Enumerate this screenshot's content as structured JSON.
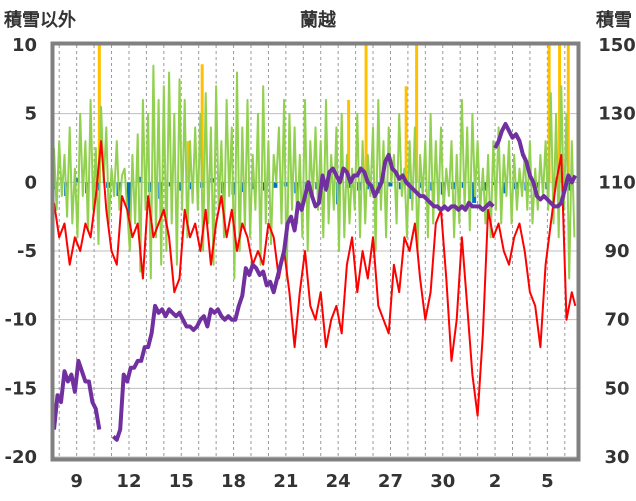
{
  "chart_data": {
    "type": "line",
    "title": "蘭越",
    "left_axis_label": "積雪以外",
    "right_axis_label": "積雪",
    "left_ylim": [
      -20,
      10
    ],
    "right_ylim": [
      30,
      150
    ],
    "left_ticks": [
      "10",
      "5",
      "0",
      "-5",
      "-10",
      "-15",
      "-20"
    ],
    "right_ticks": [
      "150",
      "130",
      "110",
      "90",
      "70",
      "50",
      "30"
    ],
    "x_ticks": [
      "9",
      "12",
      "15",
      "18",
      "21",
      "24",
      "27",
      "30",
      "2",
      "5"
    ],
    "x_tick_days": [
      2,
      5,
      8,
      11,
      14,
      17,
      20,
      23,
      26,
      29
    ],
    "x_range_days": [
      0.7,
      30.7
    ],
    "series": [
      {
        "key": "green",
        "color": "#92d050",
        "axis": "left",
        "days": [
          0.7,
          0.85,
          1.0,
          1.15,
          1.3,
          1.45,
          1.6,
          1.75,
          1.9,
          2.05,
          2.2,
          2.35,
          2.5,
          2.65,
          2.8,
          2.95,
          3.1,
          3.25,
          3.4,
          3.55,
          3.7,
          3.85,
          4.0,
          4.15,
          4.3,
          4.45,
          4.6,
          4.75,
          4.9,
          5.05,
          5.2,
          5.35,
          5.5,
          5.65,
          5.8,
          5.95,
          6.1,
          6.25,
          6.4,
          6.55,
          6.7,
          6.85,
          7.0,
          7.15,
          7.3,
          7.45,
          7.6,
          7.75,
          7.9,
          8.05,
          8.2,
          8.35,
          8.5,
          8.65,
          8.8,
          8.95,
          9.1,
          9.25,
          9.4,
          9.55,
          9.7,
          9.85,
          10.0,
          10.15,
          10.3,
          10.45,
          10.6,
          10.75,
          10.9,
          11.05,
          11.2,
          11.35,
          11.5,
          11.65,
          11.8,
          11.95,
          12.1,
          12.25,
          12.4,
          12.55,
          12.7,
          12.85,
          13.0,
          13.15,
          13.3,
          13.45,
          13.6,
          13.75,
          13.9,
          14.05,
          14.2,
          14.35,
          14.5,
          14.65,
          14.8,
          14.95,
          15.1,
          15.25,
          15.4,
          15.55,
          15.7,
          15.85,
          16.0,
          16.15,
          16.3,
          16.45,
          16.6,
          16.75,
          16.9,
          17.05,
          17.2,
          17.35,
          17.5,
          17.65,
          17.8,
          17.95,
          18.1,
          18.25,
          18.4,
          18.55,
          18.7,
          18.85,
          19.0,
          19.15,
          19.3,
          19.45,
          19.6,
          19.75,
          19.9,
          20.05,
          20.2,
          20.35,
          20.5,
          20.65,
          20.8,
          20.95,
          21.1,
          21.25,
          21.4,
          21.55,
          21.7,
          21.85,
          22.0,
          22.15,
          22.3,
          22.45,
          22.6,
          22.75,
          22.9,
          23.05,
          23.2,
          23.35,
          23.5,
          23.65,
          23.8,
          23.95,
          24.1,
          24.25,
          24.4,
          24.55,
          24.7,
          24.85,
          25.0,
          25.15,
          25.3,
          25.45,
          25.6,
          25.75,
          25.9,
          26.05,
          26.2,
          26.35,
          26.5,
          26.65,
          26.8,
          26.95,
          27.1,
          27.25,
          27.4,
          27.55,
          27.7,
          27.85,
          28.0,
          28.15,
          28.3,
          28.45,
          28.6,
          28.75,
          28.9,
          29.05,
          29.2,
          29.35,
          29.5,
          29.65,
          29.8,
          29.95,
          30.1,
          30.25,
          30.4,
          30.55
        ],
        "values": [
          2.5,
          -2,
          3,
          -1,
          2,
          -2.5,
          4,
          -3,
          1,
          -4,
          5,
          -1,
          3,
          -3.5,
          6,
          -2,
          2.5,
          -4.5,
          5.5,
          0,
          4,
          -3,
          1,
          -1,
          3,
          -2,
          0.5,
          1,
          -2,
          -5,
          2,
          -3,
          3.5,
          -6.5,
          6,
          -2,
          5,
          -7,
          8.5,
          -4,
          6,
          -6,
          7,
          -5,
          8,
          -3,
          5,
          -6,
          7.5,
          -2,
          6,
          -4,
          3,
          -1.5,
          4,
          -2,
          5,
          -5,
          6.5,
          -3,
          4,
          -6,
          7,
          -2,
          3,
          -4,
          6,
          -1,
          4,
          -7,
          8,
          -5,
          4,
          -3.5,
          6,
          -4,
          2,
          -2,
          5,
          -6,
          7,
          -3,
          3,
          -4.5,
          2,
          0,
          4,
          -3,
          6,
          -7,
          5,
          -2,
          4,
          -3,
          2,
          -4,
          6,
          -5,
          3,
          -1,
          4,
          -2,
          3,
          -4,
          6,
          -3,
          2,
          -2,
          4,
          -5,
          5,
          -4,
          2,
          -3,
          1,
          -2,
          5,
          -4,
          3,
          -3,
          2,
          -1,
          4,
          -5,
          6,
          -2,
          3,
          -4,
          4,
          0,
          2,
          -3,
          5,
          -1,
          1,
          -4,
          3,
          -2,
          4,
          -5,
          2,
          -1,
          3,
          -4,
          5,
          -3,
          3,
          -2,
          4,
          -2,
          1,
          -1,
          3,
          -4,
          2,
          -3,
          6,
          -2,
          4,
          -3.5,
          5,
          -1,
          3,
          -2,
          1,
          -3,
          2,
          -4,
          3,
          -2,
          4,
          -3,
          2,
          -1,
          3,
          -3,
          2,
          -2,
          1,
          -1,
          2,
          -2,
          3,
          -3,
          1,
          -2,
          2,
          -1,
          3,
          -2,
          6.5,
          -3,
          5,
          -4,
          7,
          -2,
          5,
          -7,
          3,
          -4
        ]
      },
      {
        "key": "red",
        "color": "#ff0000",
        "axis": "left",
        "days": [
          0.7,
          1.0,
          1.3,
          1.6,
          1.9,
          2.2,
          2.5,
          2.8,
          3.1,
          3.4,
          3.7,
          4.0,
          4.3,
          4.6,
          4.9,
          5.2,
          5.5,
          5.8,
          6.1,
          6.4,
          6.7,
          7.0,
          7.3,
          7.6,
          7.9,
          8.2,
          8.5,
          8.8,
          9.1,
          9.4,
          9.7,
          10.0,
          10.3,
          10.6,
          10.9,
          11.2,
          11.5,
          11.8,
          12.1,
          12.4,
          12.7,
          13.0,
          13.3,
          13.6,
          13.9,
          14.2,
          14.5,
          14.8,
          15.1,
          15.4,
          15.7,
          16.0,
          16.3,
          16.6,
          16.9,
          17.2,
          17.5,
          17.8,
          18.1,
          18.4,
          18.7,
          19.0,
          19.3,
          19.6,
          19.9,
          20.2,
          20.5,
          20.8,
          21.1,
          21.4,
          21.7,
          22.0,
          22.3,
          22.6,
          22.9,
          23.2,
          23.5,
          23.8,
          24.1,
          24.4,
          24.7,
          25.0,
          25.3,
          25.6,
          25.9,
          26.2,
          26.5,
          26.8,
          27.1,
          27.4,
          27.7,
          28.0,
          28.3,
          28.6,
          28.9,
          29.2,
          29.5,
          29.8,
          30.1,
          30.4,
          30.6
        ],
        "values": [
          -1.5,
          -4,
          -3,
          -6,
          -4,
          -5,
          -3,
          -4,
          -1,
          3,
          -2,
          -5,
          -6,
          -1,
          -2,
          -4,
          -3,
          -7,
          -1,
          -4,
          -3,
          -2,
          -4,
          -8,
          -7,
          -2,
          -4,
          -3,
          -5,
          -2,
          -6,
          -3,
          -1,
          -4,
          -2,
          -5,
          -3,
          -4,
          -6,
          -5,
          -6,
          -3,
          -4,
          -7,
          -5,
          -8,
          -12,
          -8,
          -5,
          -9,
          -10,
          -8,
          -12,
          -10,
          -9,
          -11,
          -6,
          -4,
          -8,
          -5,
          -7,
          -4,
          -9,
          -10,
          -11,
          -6,
          -8,
          -4,
          -5,
          -3,
          -7,
          -10,
          -8,
          -3,
          -2,
          -7,
          -13,
          -10,
          -4,
          -9,
          -14,
          -17,
          -11,
          -2,
          -4,
          -3,
          -5,
          -6,
          -4,
          -3,
          -5,
          -8,
          -9,
          -12,
          -6,
          -3,
          0,
          2,
          -10,
          -8,
          -9
        ]
      },
      {
        "key": "purple",
        "color": "#7030a0",
        "axis": "right",
        "segments": [
          {
            "days": [
              0.7,
              0.9,
              1.1,
              1.3,
              1.5,
              1.7,
              1.9,
              2.1,
              2.3,
              2.5,
              2.7,
              2.9,
              3.1,
              3.3
            ],
            "values": [
              38,
              48,
              46,
              55,
              52,
              54,
              49,
              58,
              55,
              52,
              52,
              46,
              44,
              38
            ]
          },
          {
            "days": [
              4.1,
              4.3,
              4.5,
              4.7,
              4.9,
              5.1,
              5.3,
              5.5,
              5.7,
              5.9,
              6.1,
              6.3,
              6.5,
              6.7,
              6.9,
              7.1,
              7.3,
              7.5,
              7.7,
              7.9,
              8.1,
              8.3,
              8.5,
              8.7,
              8.9,
              9.1,
              9.3,
              9.5,
              9.7,
              9.9,
              10.1,
              10.3,
              10.5,
              10.7,
              10.9,
              11.1,
              11.3,
              11.5,
              11.7,
              11.9,
              12.1,
              12.3,
              12.5,
              12.7,
              12.9,
              13.1,
              13.3,
              13.5,
              13.7,
              13.9,
              14.1,
              14.3,
              14.5,
              14.7,
              14.9,
              15.1,
              15.3,
              15.5,
              15.7,
              15.9,
              16.1,
              16.3,
              16.5,
              16.7,
              16.9,
              17.1,
              17.3,
              17.5,
              17.7,
              17.9,
              18.1,
              18.3,
              18.5,
              18.7,
              18.9,
              19.1,
              19.3,
              19.5,
              19.7,
              19.9,
              20.1,
              20.3,
              20.5,
              20.7,
              20.9,
              21.1,
              21.3,
              21.5,
              21.7,
              21.9,
              22.1,
              22.3,
              22.5,
              22.7,
              22.9,
              23.1,
              23.3,
              23.5,
              23.7,
              23.9,
              24.1,
              24.3,
              24.5,
              24.7,
              24.9,
              25.1,
              25.3,
              25.5,
              25.7,
              25.9
            ],
            "values": [
              36,
              35,
              38,
              54,
              52,
              56,
              56,
              58,
              58,
              62,
              62,
              66,
              74,
              72,
              73,
              71,
              73,
              72,
              71,
              72,
              70,
              68,
              68,
              67,
              68,
              70,
              71,
              68,
              73,
              72,
              73,
              71,
              70,
              71,
              70,
              70,
              74,
              77,
              85,
              83,
              86,
              85,
              83,
              84,
              80,
              81,
              78,
              82,
              86,
              90,
              98,
              100,
              96,
              104,
              102,
              106,
              110,
              106,
              103,
              104,
              112,
              108,
              113,
              114,
              112,
              110,
              114,
              113,
              110,
              112,
              112,
              114,
              113,
              110,
              109,
              106,
              108,
              110,
              116,
              118,
              114,
              113,
              111,
              112,
              110,
              109,
              108,
              107,
              106,
              106,
              105,
              104,
              103,
              103,
              102,
              103,
              102,
              103,
              103,
              102,
              103,
              102,
              104,
              103,
              103,
              103,
              102,
              103,
              104,
              103
            ]
          },
          {
            "days": [
              26.0,
              26.2,
              26.4,
              26.6,
              26.8,
              27.0,
              27.2,
              27.4,
              27.6,
              27.8,
              28.0,
              28.2,
              28.4,
              28.6,
              28.8,
              29.0,
              29.2,
              29.4,
              29.6,
              29.8,
              30.0,
              30.2,
              30.4,
              30.6
            ],
            "values": [
              120,
              122,
              125,
              127,
              125,
              123,
              124,
              122,
              118,
              116,
              112,
              110,
              106,
              105,
              106,
              105,
              104,
              103,
              103,
              104,
              108,
              112,
              110,
              112
            ]
          }
        ]
      },
      {
        "key": "orange",
        "color": "#ffc000",
        "axis": "left",
        "days": [
          3.3,
          8.4,
          9.2,
          17.6,
          18.6,
          20.9,
          21.5,
          29.1,
          29.7,
          30.2
        ],
        "values": [
          10,
          3,
          8.6,
          6,
          10,
          7,
          10,
          10,
          10,
          10
        ]
      },
      {
        "key": "blue",
        "color": "#0070c0",
        "axis": "left",
        "days": [
          0.8,
          1.4,
          2.0,
          2.6,
          3.2,
          3.8,
          4.4,
          5.0,
          5.6,
          6.2,
          6.8,
          7.4,
          8.0,
          8.6,
          9.2,
          9.8,
          10.4,
          11.0,
          11.6,
          12.2,
          12.8,
          13.4,
          14.0,
          14.6,
          15.2,
          15.8,
          16.4,
          17.0,
          17.6,
          18.2,
          18.8,
          19.4,
          20.0,
          20.6,
          21.2,
          21.8,
          22.4,
          23.0,
          23.6,
          24.2,
          24.8,
          25.4,
          26.0,
          26.6,
          27.2,
          27.8,
          28.4,
          29.0,
          29.6,
          30.2
        ],
        "values": [
          -0.5,
          -1,
          0.3,
          -0.8,
          -0.6,
          -0.4,
          -1,
          -2.5,
          0.4,
          -0.7,
          -1.2,
          -0.3,
          -0.6,
          -0.5,
          -0.4,
          0.3,
          -0.8,
          -0.9,
          -0.7,
          -0.5,
          -0.6,
          -0.4,
          -0.3,
          -0.8,
          -0.6,
          -0.5,
          -0.7,
          -1.6,
          -0.4,
          -0.6,
          -0.5,
          -0.8,
          -0.3,
          -0.5,
          -1.2,
          -0.4,
          -0.6,
          -0.9,
          -0.5,
          -0.4,
          -1.5,
          -0.6,
          -0.2,
          -0.8,
          -0.5,
          -0.6,
          -0.4,
          -0.5,
          0.4,
          -0.6
        ]
      }
    ]
  }
}
